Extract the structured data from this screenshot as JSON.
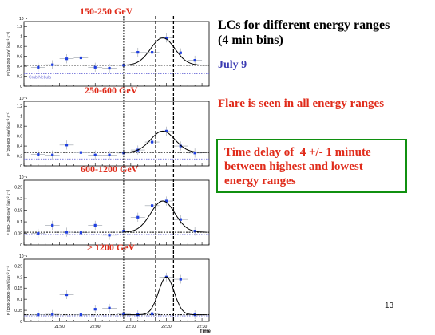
{
  "slide": {
    "heading_line1": "LCs for different energy ranges",
    "heading_line2": "(4 min bins)",
    "date": "July 9",
    "flare_text": "Flare is seen in all energy ranges",
    "delay_line1": "Time delay of  4 +/- 1 minute",
    "delay_line2": "between highest and lowest",
    "delay_line3": "energy ranges",
    "page_number": "13"
  },
  "colors": {
    "title_red": "#e02b1a",
    "date_blue": "#3b3bb2",
    "box_green": "#109010",
    "point_blue": "#1f3fe0",
    "crab_line": "#6f6fd8"
  },
  "axis": {
    "x_ticks": [
      "21:50",
      "22:00",
      "22:10",
      "22:20",
      "22:30"
    ],
    "x_label": "Time",
    "crab_label": "Crab Nebula"
  },
  "chart_data": [
    {
      "type": "scatter",
      "title": "150-250 GeV",
      "ylabel": "F (150-250 GeV) [cm⁻² s⁻¹]",
      "y_exponent": "10⁻⁹",
      "yticks": [
        "0",
        "0.2",
        "0.4",
        "0.6",
        "0.8",
        "1",
        "1.2"
      ],
      "ylim": [
        0,
        1.3
      ],
      "crab_level": 0.25,
      "baseline_level": 0.42,
      "x": [
        "21:44",
        "21:48",
        "21:52",
        "21:56",
        "22:00",
        "22:04",
        "22:08",
        "22:12",
        "22:16",
        "22:20",
        "22:24",
        "22:28"
      ],
      "values": [
        0.38,
        0.43,
        0.55,
        0.57,
        0.38,
        0.36,
        0.42,
        0.68,
        0.68,
        0.97,
        0.67,
        0.52
      ],
      "fit": "gaussian"
    },
    {
      "type": "scatter",
      "title": "250-600 GeV",
      "ylabel": "F (250-600 GeV) [cm⁻² s⁻¹]",
      "y_exponent": "10⁻⁹",
      "yticks": [
        "0",
        "0.2",
        "0.4",
        "0.6",
        "0.8",
        "1",
        "1.2"
      ],
      "ylim": [
        0,
        1.3
      ],
      "crab_level": 0.14,
      "baseline_level": 0.27,
      "x": [
        "21:44",
        "21:48",
        "21:52",
        "21:56",
        "22:00",
        "22:04",
        "22:08",
        "22:12",
        "22:16",
        "22:20",
        "22:24",
        "22:28"
      ],
      "values": [
        0.23,
        0.22,
        0.42,
        0.27,
        0.22,
        0.22,
        0.26,
        0.32,
        0.48,
        0.7,
        0.4,
        0.26
      ],
      "fit": "gaussian"
    },
    {
      "type": "scatter",
      "title": "600-1200 GeV",
      "ylabel": "F (600-1200 GeV) [cm⁻² s⁻¹]",
      "y_exponent": "10⁻⁹",
      "yticks": [
        "0",
        "0.05",
        "0.1",
        "0.15",
        "0.2",
        "0.25"
      ],
      "ylim": [
        0,
        0.28
      ],
      "crab_level": 0.045,
      "baseline_level": 0.055,
      "x": [
        "21:44",
        "21:48",
        "21:52",
        "21:56",
        "22:00",
        "22:04",
        "22:08",
        "22:12",
        "22:16",
        "22:20",
        "22:24",
        "22:28"
      ],
      "values": [
        0.05,
        0.085,
        0.055,
        0.053,
        0.085,
        0.042,
        0.06,
        0.12,
        0.17,
        0.19,
        0.11,
        0.06
      ],
      "fit": "gaussian"
    },
    {
      "type": "scatter",
      "title": "> 1200 GeV",
      "ylabel": "F (1200-10000 GeV) [cm⁻² s⁻¹]",
      "y_exponent": "10⁻⁹",
      "yticks": [
        "0",
        "0.05",
        "0.1",
        "0.15",
        "0.2",
        "0.25"
      ],
      "ylim": [
        0,
        0.28
      ],
      "crab_level": 0.025,
      "baseline_level": 0.03,
      "x": [
        "21:44",
        "21:48",
        "21:52",
        "21:56",
        "22:00",
        "22:04",
        "22:08",
        "22:12",
        "22:16",
        "22:20",
        "22:24",
        "22:28"
      ],
      "values": [
        0.03,
        0.032,
        0.12,
        0.03,
        0.055,
        0.06,
        0.035,
        0.03,
        0.035,
        0.2,
        0.19,
        0.03
      ],
      "fit": "gaussian"
    }
  ]
}
